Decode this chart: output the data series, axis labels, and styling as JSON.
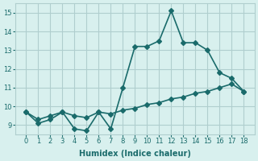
{
  "xlabel": "Humidex (Indice chaleur)",
  "x": [
    0,
    1,
    2,
    3,
    4,
    5,
    6,
    7,
    8,
    9,
    10,
    11,
    12,
    13,
    14,
    15,
    16,
    17,
    18
  ],
  "line1_y": [
    9.7,
    9.1,
    9.3,
    9.7,
    8.8,
    8.7,
    9.7,
    8.8,
    11.0,
    13.2,
    13.2,
    13.5,
    15.1,
    13.4,
    13.4,
    13.0,
    11.8,
    11.5,
    10.8
  ],
  "line2_y": [
    9.7,
    9.3,
    9.5,
    9.7,
    9.5,
    9.4,
    9.7,
    9.6,
    9.8,
    9.9,
    10.1,
    10.2,
    10.4,
    10.5,
    10.7,
    10.8,
    11.0,
    11.2,
    10.8
  ],
  "line_color": "#1a6b6b",
  "bg_color": "#d8f0ee",
  "grid_color": "#b0cece",
  "ylim": [
    8.5,
    15.5
  ],
  "yticks": [
    9,
    10,
    11,
    12,
    13,
    14,
    15
  ],
  "xticks": [
    0,
    1,
    2,
    3,
    4,
    5,
    6,
    7,
    8,
    9,
    10,
    11,
    12,
    13,
    14,
    15,
    16,
    17,
    18
  ],
  "marker": "D",
  "markersize": 3,
  "linewidth": 1.2
}
